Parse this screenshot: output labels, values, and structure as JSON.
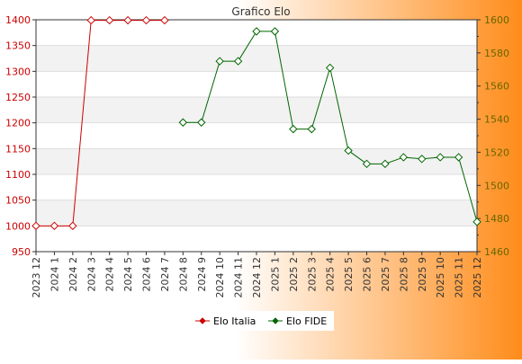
{
  "colors": {
    "background_start": "#ffffff",
    "background_end": "#ff8c1a",
    "plot_band": "#f2f2f2",
    "plot_band_alt": "#ffffff",
    "gridline": "#dddddd",
    "axis": "#333333",
    "left_axis_text": "#cc0000",
    "right_axis_text": "#666600",
    "italia": "#cc0000",
    "fide": "#006600"
  },
  "chart_data": {
    "type": "line",
    "title": "Grafico Elo",
    "xlabel": "",
    "categories": [
      "2023 12",
      "2024 1",
      "2024 2",
      "2024 3",
      "2024 4",
      "2024 5",
      "2024 6",
      "2024 7",
      "2024 8",
      "2024 9",
      "2024 10",
      "2024 11",
      "2024 12",
      "2025 1",
      "2025 2",
      "2025 3",
      "2025 4",
      "2025 5",
      "2025 6",
      "2025 7",
      "2025 8",
      "2025 9",
      "2025 10",
      "2025 11",
      "2025 12"
    ],
    "y_left": {
      "label": "",
      "ylim": [
        950,
        1400
      ],
      "ticks": [
        950,
        1000,
        1050,
        1100,
        1150,
        1200,
        1250,
        1300,
        1350,
        1400
      ]
    },
    "y_right": {
      "label": "",
      "ylim": [
        1460,
        1600
      ],
      "ticks": [
        1460,
        1480,
        1500,
        1520,
        1540,
        1560,
        1580,
        1600
      ]
    },
    "grid": true,
    "legend_position": "bottom-center",
    "series": [
      {
        "name": "Elo Italia",
        "axis": "left",
        "color": "#cc0000",
        "marker": "diamond",
        "values": [
          1000,
          1000,
          1000,
          1399,
          1399,
          1399,
          1399,
          1399,
          null,
          null,
          null,
          null,
          null,
          null,
          null,
          null,
          null,
          null,
          null,
          null,
          null,
          null,
          null,
          null,
          null
        ]
      },
      {
        "name": "Elo FIDE",
        "axis": "right",
        "color": "#006600",
        "marker": "diamond",
        "values": [
          null,
          null,
          null,
          null,
          null,
          null,
          null,
          null,
          1538,
          1538,
          1575,
          1575,
          1593,
          1593,
          1534,
          1534,
          1571,
          1521,
          1513,
          1513,
          1517,
          1516,
          1517,
          1517,
          1478
        ]
      }
    ]
  }
}
